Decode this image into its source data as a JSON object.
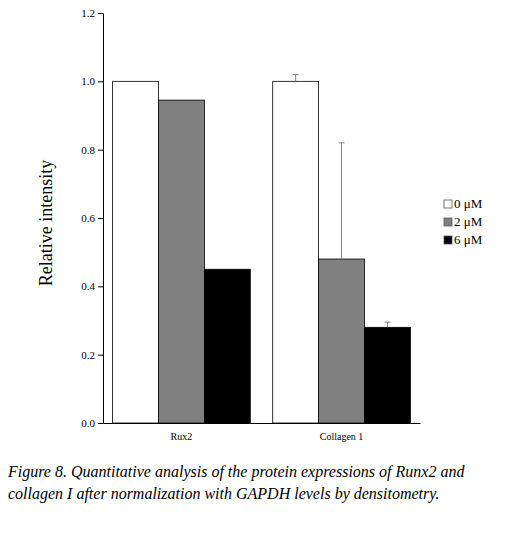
{
  "chart_data": {
    "type": "bar",
    "title": "Figure 8. Quantitative analysis of the protein expressions of Runx2 and collagen I after normalization with GAPDH levels by densitometry.",
    "y_label": "Relative intensity",
    "categories": [
      "Rux2",
      "Collagen 1"
    ],
    "series": [
      {
        "name": "0 μM",
        "color": "#ffffff",
        "values": [
          1.0,
          1.0
        ],
        "errors": [
          null,
          0.02
        ]
      },
      {
        "name": "2 μM",
        "color": "#808080",
        "values": [
          0.945,
          0.48
        ],
        "errors": [
          null,
          0.34
        ]
      },
      {
        "name": "6 μM",
        "color": "#000000",
        "values": [
          0.45,
          0.28
        ],
        "errors": [
          null,
          0.015
        ]
      }
    ],
    "ylim": [
      0,
      1.2
    ],
    "yticks": [
      {
        "value": 0,
        "label": "0.0"
      },
      0.2,
      0.4,
      0.6,
      0.8,
      {
        "value": 1,
        "label": "1.0"
      },
      1.2
    ],
    "legend": "right",
    "grid": false
  }
}
